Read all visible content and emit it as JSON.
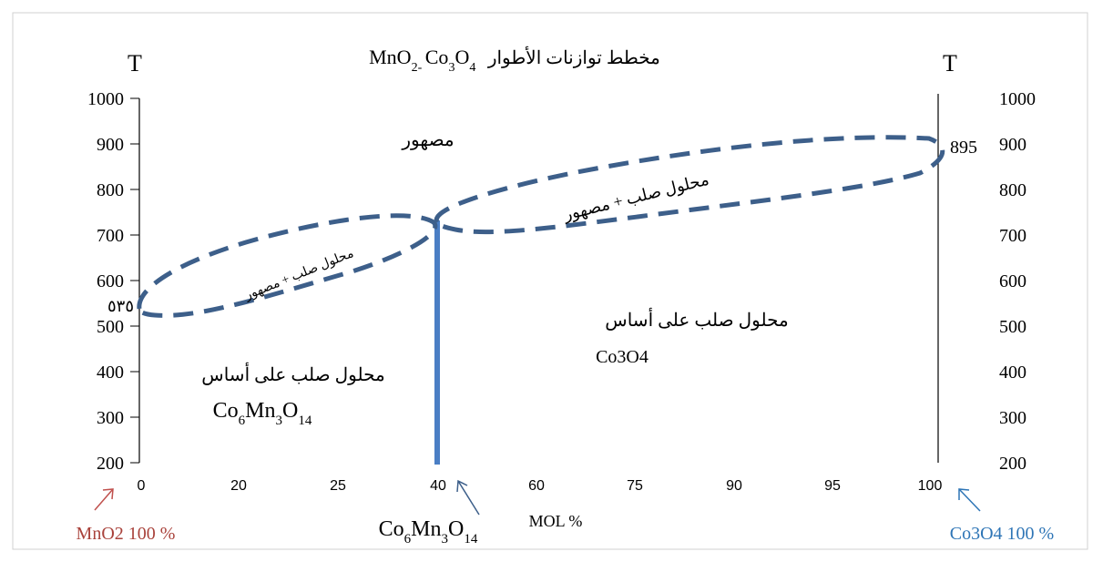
{
  "title": {
    "arabic": "مخطط توازنات الأطوار",
    "formula_parts": [
      "MnO",
      "2",
      "- ",
      "Co",
      "3",
      "O",
      "4"
    ]
  },
  "axes": {
    "left_label": "T",
    "right_label": "T",
    "y_ticks": [
      "1000",
      "900",
      "800",
      "700",
      "600",
      "500",
      "400",
      "300",
      "200"
    ],
    "x_ticks": [
      "0",
      "20",
      "25",
      "40",
      "60",
      "75",
      "90",
      "95",
      "100"
    ],
    "x_unit_label": "MOL %",
    "left_extra_tick": "٥٣٥",
    "right_extra_tick": "895"
  },
  "regions": {
    "liquid": "مصهور",
    "left_two_phase": "محلول صلب + مصهور",
    "right_two_phase": "محلول صلب + مصهور",
    "left_solid_label": "محلول صلب على أساس",
    "left_solid_formula_parts": [
      "Co",
      "6",
      "Mn",
      "3",
      "O",
      "14"
    ],
    "right_solid_label": "محلول صلب على أساس",
    "right_solid_formula": "Co3O4"
  },
  "bottom": {
    "left_end": "MnO2 100 %",
    "compound_parts": [
      "Co",
      "6",
      "Mn",
      "3",
      "O",
      "14"
    ],
    "right_end": "Co3O4 100 %"
  },
  "colors": {
    "dashed_curve": "#3d5f8a",
    "compound_line": "#4a7ec4",
    "arrow": "#3d5f8a",
    "left_end_text": "#a9423b",
    "right_end_text": "#2e75b6",
    "right_end_arrow": "#2e75b6",
    "left_end_arrow": "#c0504d"
  }
}
